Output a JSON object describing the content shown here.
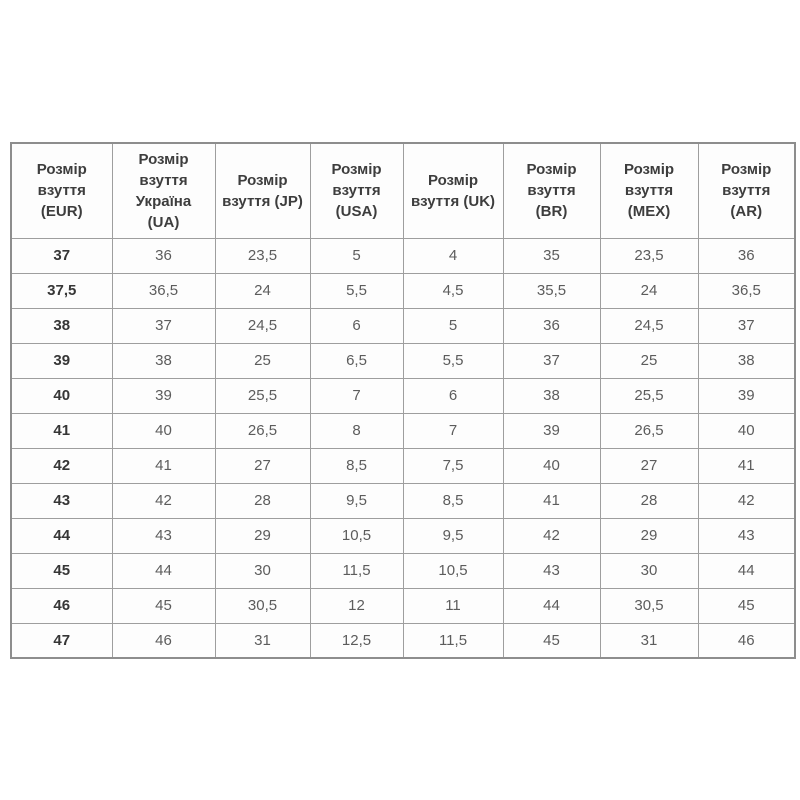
{
  "chart_data": {
    "type": "table",
    "columns": [
      {
        "label": "Розмір взуття (EUR)",
        "code": "EUR"
      },
      {
        "label": "Розмір взуття Україна (UA)",
        "code": "UA"
      },
      {
        "label": "Розмір взуття (JP)",
        "code": "JP"
      },
      {
        "label": "Розмір взуття (USA)",
        "code": "USA"
      },
      {
        "label": "Розмір взуття (UK)",
        "code": "UK"
      },
      {
        "label": "Розмір взуття (BR)",
        "code": "BR"
      },
      {
        "label": "Розмір взуття (MEX)",
        "code": "MEX"
      },
      {
        "label": "Розмір взуття (AR)",
        "code": "AR"
      }
    ],
    "rows": [
      [
        "37",
        "36",
        "23,5",
        "5",
        "4",
        "35",
        "23,5",
        "36"
      ],
      [
        "37,5",
        "36,5",
        "24",
        "5,5",
        "4,5",
        "35,5",
        "24",
        "36,5"
      ],
      [
        "38",
        "37",
        "24,5",
        "6",
        "5",
        "36",
        "24,5",
        "37"
      ],
      [
        "39",
        "38",
        "25",
        "6,5",
        "5,5",
        "37",
        "25",
        "38"
      ],
      [
        "40",
        "39",
        "25,5",
        "7",
        "6",
        "38",
        "25,5",
        "39"
      ],
      [
        "41",
        "40",
        "26,5",
        "8",
        "7",
        "39",
        "26,5",
        "40"
      ],
      [
        "42",
        "41",
        "27",
        "8,5",
        "7,5",
        "40",
        "27",
        "41"
      ],
      [
        "43",
        "42",
        "28",
        "9,5",
        "8,5",
        "41",
        "28",
        "42"
      ],
      [
        "44",
        "43",
        "29",
        "10,5",
        "9,5",
        "42",
        "29",
        "43"
      ],
      [
        "45",
        "44",
        "30",
        "11,5",
        "10,5",
        "43",
        "30",
        "44"
      ],
      [
        "46",
        "45",
        "30,5",
        "12",
        "11",
        "44",
        "30,5",
        "45"
      ],
      [
        "47",
        "46",
        "31",
        "12,5",
        "11,5",
        "45",
        "31",
        "46"
      ]
    ]
  },
  "colors": {
    "table_outer_border": "#8d8d8d",
    "cell_border": "#9e9e9e",
    "header_text": "#3d3d3d",
    "row_header_text": "#363636",
    "cell_text": "#5c5c5c",
    "cell_background": "#fdfdfd",
    "page_background": "#ffffff"
  }
}
